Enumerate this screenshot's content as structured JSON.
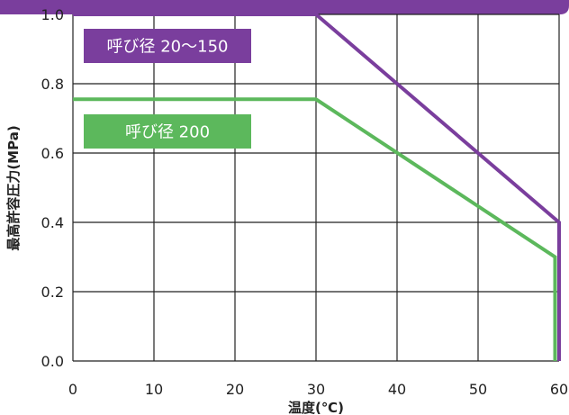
{
  "chart_data": {
    "type": "line",
    "xlabel": "温度(℃)",
    "ylabel": "最高許容圧力(MPa)",
    "xlim": [
      0,
      60
    ],
    "ylim": [
      0,
      1.0
    ],
    "x_ticks": [
      "0",
      "10",
      "20",
      "30",
      "40",
      "50",
      "60"
    ],
    "y_ticks": [
      "0.0",
      "0.2",
      "0.4",
      "0.6",
      "0.8",
      "1.0"
    ],
    "grid": true,
    "series": [
      {
        "name": "呼び径 20〜150",
        "color": "#7a3e9d",
        "points": [
          [
            0,
            1.0
          ],
          [
            30,
            1.0
          ],
          [
            60,
            0.4
          ],
          [
            60,
            0.0
          ]
        ]
      },
      {
        "name": "呼び径 200",
        "color": "#5cb85c",
        "points": [
          [
            0,
            0.755
          ],
          [
            30,
            0.755
          ],
          [
            59.5,
            0.3
          ],
          [
            59.5,
            0.0
          ]
        ]
      }
    ]
  },
  "colors": {
    "frame": "#7a3e9d",
    "grid": "#222222",
    "background": "#ffffff"
  }
}
